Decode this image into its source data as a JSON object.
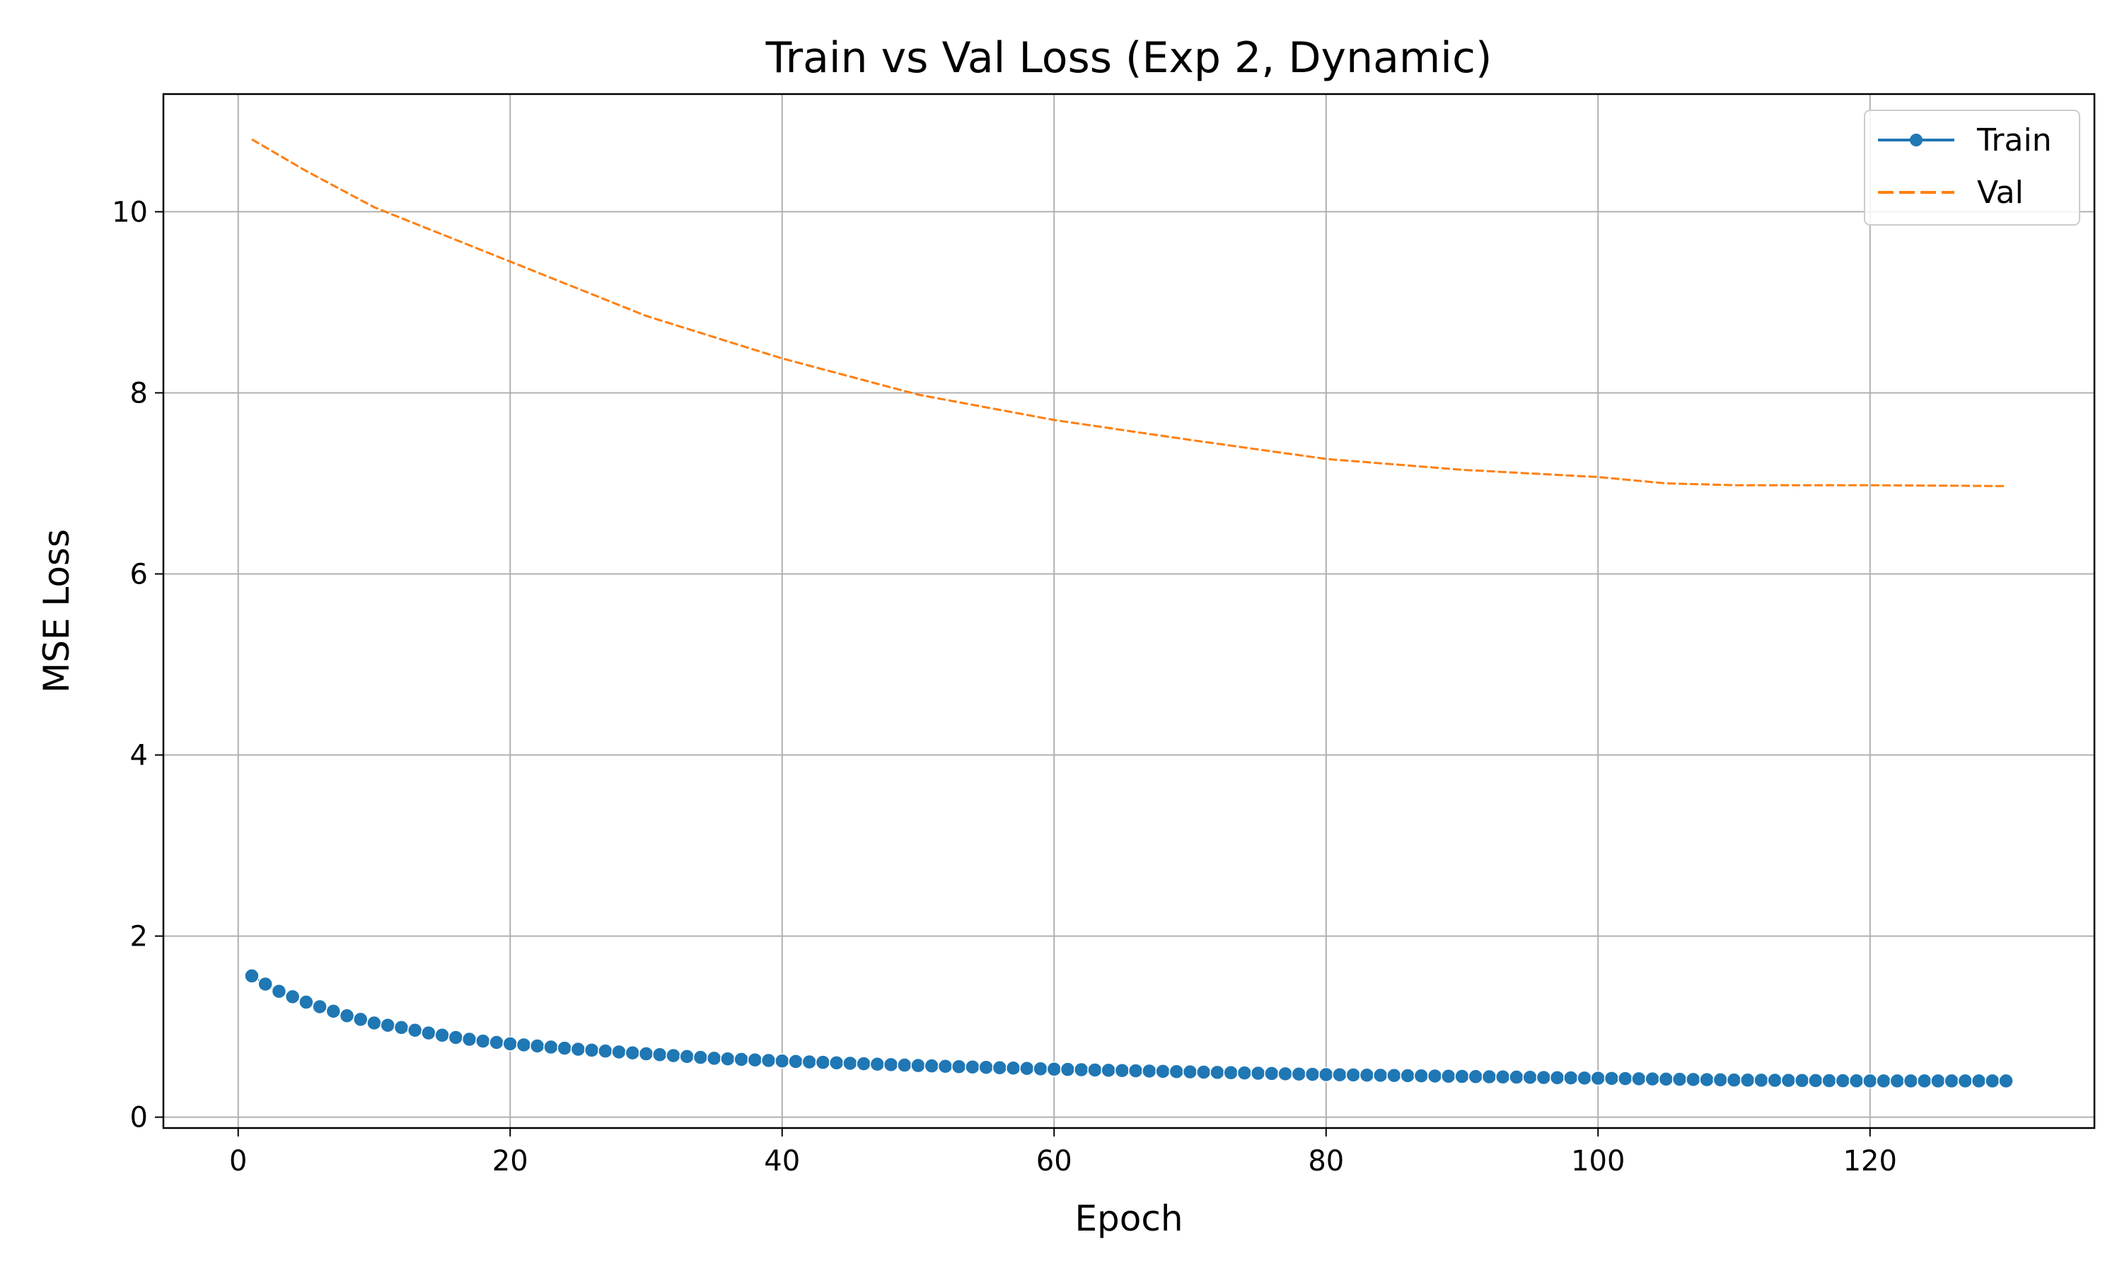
{
  "chart_data": {
    "type": "line",
    "title": "Train vs Val Loss (Exp 2, Dynamic)",
    "xlabel": "Epoch",
    "ylabel": "MSE Loss",
    "xlim": [
      -5.5,
      136.5
    ],
    "ylim": [
      -0.12,
      11.3
    ],
    "xticks": [
      0,
      20,
      40,
      60,
      80,
      100,
      120
    ],
    "yticks": [
      0,
      2,
      4,
      6,
      8,
      10
    ],
    "grid": true,
    "legend_position": "top-right",
    "series": [
      {
        "name": "Train",
        "color": "#1f77b4",
        "style": "solid-with-circle-markers",
        "anchors": [
          [
            1,
            1.56
          ],
          [
            2,
            1.47
          ],
          [
            3,
            1.39
          ],
          [
            4,
            1.33
          ],
          [
            5,
            1.27
          ],
          [
            6,
            1.22
          ],
          [
            7,
            1.17
          ],
          [
            8,
            1.12
          ],
          [
            9,
            1.08
          ],
          [
            10,
            1.04
          ],
          [
            12,
            0.99
          ],
          [
            14,
            0.93
          ],
          [
            16,
            0.88
          ],
          [
            18,
            0.84
          ],
          [
            20,
            0.81
          ],
          [
            25,
            0.75
          ],
          [
            30,
            0.7
          ],
          [
            35,
            0.65
          ],
          [
            40,
            0.62
          ],
          [
            50,
            0.57
          ],
          [
            60,
            0.53
          ],
          [
            70,
            0.5
          ],
          [
            80,
            0.47
          ],
          [
            90,
            0.45
          ],
          [
            100,
            0.43
          ],
          [
            110,
            0.41
          ],
          [
            120,
            0.4
          ],
          [
            130,
            0.4
          ]
        ],
        "x_range": [
          1,
          130
        ]
      },
      {
        "name": "Val",
        "color": "#ff7f0e",
        "style": "dashed",
        "anchors": [
          [
            1,
            10.8
          ],
          [
            5,
            10.45
          ],
          [
            10,
            10.05
          ],
          [
            20,
            9.45
          ],
          [
            30,
            8.85
          ],
          [
            40,
            8.38
          ],
          [
            50,
            7.98
          ],
          [
            60,
            7.7
          ],
          [
            70,
            7.48
          ],
          [
            80,
            7.27
          ],
          [
            90,
            7.15
          ],
          [
            100,
            7.07
          ],
          [
            105,
            7.0
          ],
          [
            110,
            6.98
          ],
          [
            115,
            6.98
          ],
          [
            120,
            6.98
          ],
          [
            130,
            6.97
          ]
        ],
        "x_range": [
          1,
          130
        ]
      }
    ]
  }
}
